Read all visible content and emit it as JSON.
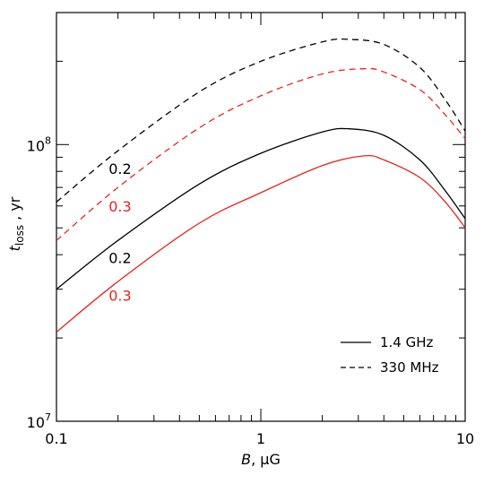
{
  "chart_data": {
    "type": "line",
    "title": "",
    "xlabel": "B, μG",
    "ylabel": "t_loss , yr",
    "xscale": "log",
    "yscale": "log",
    "xlim": [
      0.1,
      10
    ],
    "ylim": [
      10000000,
      300000000
    ],
    "grid": false,
    "legend_position": "bottom-right",
    "x_ticks": [
      {
        "value": 0.1,
        "label": "0.1"
      },
      {
        "value": 1,
        "label": "1"
      },
      {
        "value": 10,
        "label": "10"
      }
    ],
    "y_ticks": [
      {
        "value": 10000000,
        "base": "10",
        "exp": "7"
      },
      {
        "value": 100000000,
        "base": "10",
        "exp": "8"
      }
    ],
    "legend": [
      {
        "label": "1.4 GHz",
        "dash": "solid"
      },
      {
        "label": "330 MHz",
        "dash": "dashed"
      }
    ],
    "series": [
      {
        "label": "0.2",
        "color": "#000000",
        "dash": "dashed",
        "x": [
          0.1,
          0.2,
          0.5,
          1,
          2,
          2.7,
          4,
          6,
          8,
          10
        ],
        "y": [
          62000000,
          95000000,
          155000000,
          200000000,
          235000000,
          240000000,
          230000000,
          190000000,
          145000000,
          112000000
        ]
      },
      {
        "label": "0.3",
        "color": "#e8231f",
        "dash": "dashed",
        "x": [
          0.1,
          0.2,
          0.5,
          1,
          2,
          3.2,
          4,
          6,
          8,
          10
        ],
        "y": [
          45000000,
          70000000,
          115000000,
          150000000,
          180000000,
          188000000,
          183000000,
          158000000,
          128000000,
          105000000
        ]
      },
      {
        "label": "0.2",
        "color": "#000000",
        "dash": "solid",
        "x": [
          0.1,
          0.2,
          0.5,
          1,
          2,
          2.7,
          4,
          6,
          8,
          10
        ],
        "y": [
          30000000,
          45000000,
          72000000,
          93000000,
          111000000,
          114000000,
          108000000,
          88000000,
          68000000,
          54000000
        ]
      },
      {
        "label": "0.3",
        "color": "#e8231f",
        "dash": "solid",
        "x": [
          0.1,
          0.2,
          0.5,
          1,
          2,
          3.2,
          4,
          6,
          8,
          10
        ],
        "y": [
          21000000,
          32000000,
          52000000,
          67000000,
          84000000,
          91000000,
          88000000,
          76000000,
          62000000,
          50000000
        ]
      }
    ]
  }
}
